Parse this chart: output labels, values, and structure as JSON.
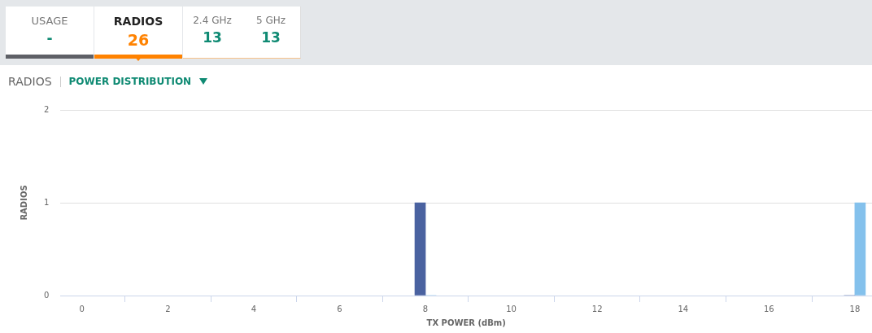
{
  "chart_data": {
    "type": "bar",
    "title": "RADIOS",
    "subtitle": "POWER DISTRIBUTION",
    "xlabel": "TX POWER (dBm)",
    "ylabel": "RADIOS",
    "annotations": [
      "USAGE",
      "-",
      "RADIOS",
      "26",
      "2.4 GHz",
      "13",
      "5 GHz",
      "13"
    ],
    "x": [
      8,
      18
    ],
    "series": [
      {
        "color": "#4a62a0",
        "values": [
          1,
          0
        ]
      },
      {
        "color": "#84c1ec",
        "values": [
          0,
          1
        ]
      }
    ],
    "xlim": [
      -0.5,
      18.4
    ],
    "xticks": [
      0,
      2,
      4,
      6,
      8,
      10,
      12,
      14,
      16,
      18
    ],
    "ylim": [
      0,
      2
    ],
    "yticks": [
      0,
      1,
      2
    ],
    "grid": "y",
    "legend": false
  }
}
